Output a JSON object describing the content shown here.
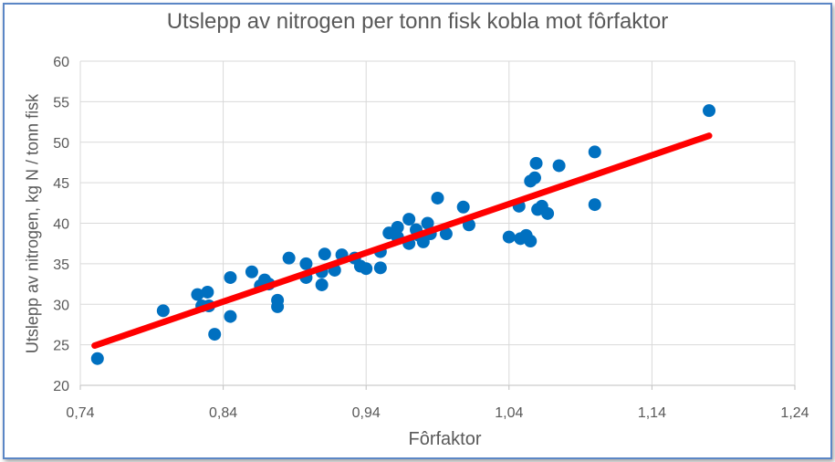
{
  "chart_data": {
    "type": "scatter",
    "title": "Utslepp av nitrogen per tonn fisk kobla mot fôrfaktor",
    "xlabel": "Fôrfaktor",
    "ylabel": "Utslepp av nitrogen, kg N / tonn fisk",
    "xlim": [
      0.74,
      1.24
    ],
    "ylim": [
      20,
      60
    ],
    "x_ticks": [
      0.74,
      0.84,
      0.94,
      1.04,
      1.14,
      1.24
    ],
    "x_tick_labels": [
      "0,74",
      "0,84",
      "0,94",
      "1,04",
      "1,14",
      "1,24"
    ],
    "y_ticks": [
      20,
      25,
      30,
      35,
      40,
      45,
      50,
      55,
      60
    ],
    "y_tick_labels": [
      "20",
      "25",
      "30",
      "35",
      "40",
      "45",
      "50",
      "55",
      "60"
    ],
    "grid": true,
    "legend": "none",
    "series": [
      {
        "marker_color": "#0070c0",
        "points": [
          [
            0.752,
            23.3
          ],
          [
            0.798,
            29.2
          ],
          [
            0.822,
            31.2
          ],
          [
            0.825,
            29.8
          ],
          [
            0.829,
            31.5
          ],
          [
            0.83,
            29.8
          ],
          [
            0.834,
            26.3
          ],
          [
            0.845,
            33.3
          ],
          [
            0.845,
            28.5
          ],
          [
            0.86,
            34.0
          ],
          [
            0.866,
            32.3
          ],
          [
            0.869,
            33.0
          ],
          [
            0.872,
            32.5
          ],
          [
            0.878,
            30.5
          ],
          [
            0.878,
            29.7
          ],
          [
            0.886,
            35.7
          ],
          [
            0.898,
            35.0
          ],
          [
            0.898,
            33.3
          ],
          [
            0.909,
            34.0
          ],
          [
            0.909,
            32.4
          ],
          [
            0.911,
            36.2
          ],
          [
            0.918,
            34.2
          ],
          [
            0.923,
            36.1
          ],
          [
            0.932,
            35.7
          ],
          [
            0.936,
            34.7
          ],
          [
            0.94,
            34.4
          ],
          [
            0.95,
            36.5
          ],
          [
            0.95,
            34.5
          ],
          [
            0.956,
            38.8
          ],
          [
            0.962,
            39.5
          ],
          [
            0.962,
            38.3
          ],
          [
            0.97,
            40.5
          ],
          [
            0.97,
            37.5
          ],
          [
            0.975,
            39.2
          ],
          [
            0.977,
            38.5
          ],
          [
            0.98,
            37.7
          ],
          [
            0.983,
            40.0
          ],
          [
            0.985,
            38.7
          ],
          [
            0.99,
            43.1
          ],
          [
            0.996,
            38.7
          ],
          [
            1.008,
            42.0
          ],
          [
            1.012,
            39.8
          ],
          [
            1.04,
            38.3
          ],
          [
            1.047,
            42.1
          ],
          [
            1.048,
            38.1
          ],
          [
            1.052,
            38.5
          ],
          [
            1.055,
            45.2
          ],
          [
            1.055,
            37.8
          ],
          [
            1.058,
            45.6
          ],
          [
            1.059,
            47.4
          ],
          [
            1.06,
            41.7
          ],
          [
            1.063,
            42.1
          ],
          [
            1.067,
            41.2
          ],
          [
            1.075,
            47.1
          ],
          [
            1.1,
            48.8
          ],
          [
            1.1,
            42.3
          ],
          [
            1.18,
            53.9
          ]
        ]
      }
    ],
    "trendline": {
      "color": "#ff0000",
      "x": [
        0.75,
        1.18
      ],
      "y": [
        24.9,
        50.8
      ]
    }
  }
}
